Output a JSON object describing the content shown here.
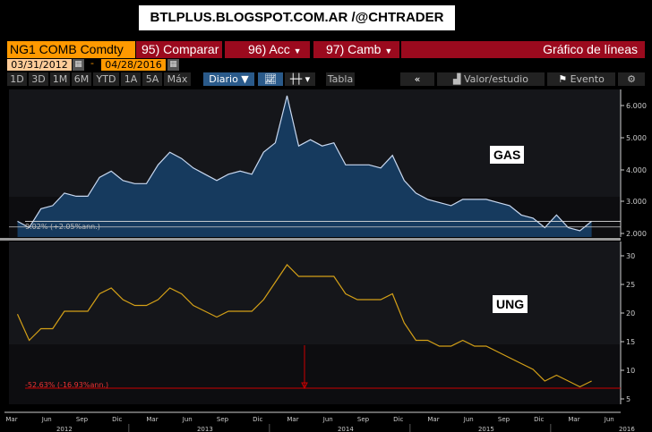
{
  "banner": "BTLPLUS.BLOGSPOT.COM.AR /@CHTRADER",
  "header": {
    "ticker": "NG1 COMB Comdty",
    "compare": "95) Comparar",
    "acc": "96) Acc",
    "camb": "97) Camb",
    "chart_type": "Gráfico de líneas",
    "start_date": "03/31/2012",
    "sep": "-",
    "end_date": "04/28/2016"
  },
  "toolbar": {
    "periods": [
      "1D",
      "3D",
      "1M",
      "6M",
      "YTD",
      "1A",
      "5A",
      "Máx"
    ],
    "freq": "Diario ▼",
    "table": "Tabla",
    "back": "«",
    "study": "Valor/estudio",
    "event": "Evento",
    "gear": "⚙"
  },
  "chart_data": [
    {
      "type": "area",
      "label": "GAS",
      "color": "#c8d8f0",
      "yticks": [
        "6.000",
        "5.000",
        "4.000",
        "3.000",
        "2.000"
      ],
      "ylim": [
        1.6,
        6.3
      ],
      "annotation": "9.02% (+2.05%ann.)",
      "x": [
        "2012-03",
        "2012-04",
        "2012-05",
        "2012-06",
        "2012-07",
        "2012-08",
        "2012-09",
        "2012-10",
        "2012-11",
        "2012-12",
        "2013-01",
        "2013-02",
        "2013-03",
        "2013-04",
        "2013-05",
        "2013-06",
        "2013-07",
        "2013-08",
        "2013-09",
        "2013-10",
        "2013-11",
        "2013-12",
        "2014-01",
        "2014-02",
        "2014-03",
        "2014-04",
        "2014-05",
        "2014-06",
        "2014-07",
        "2014-08",
        "2014-09",
        "2014-10",
        "2014-11",
        "2014-12",
        "2015-01",
        "2015-02",
        "2015-03",
        "2015-04",
        "2015-05",
        "2015-06",
        "2015-07",
        "2015-08",
        "2015-09",
        "2015-10",
        "2015-11",
        "2015-12",
        "2016-01",
        "2016-02",
        "2016-03",
        "2016-04"
      ],
      "values": [
        2.1,
        1.9,
        2.5,
        2.6,
        3.0,
        2.9,
        2.9,
        3.5,
        3.7,
        3.4,
        3.3,
        3.3,
        3.9,
        4.3,
        4.1,
        3.8,
        3.6,
        3.4,
        3.6,
        3.7,
        3.6,
        4.3,
        4.6,
        6.1,
        4.5,
        4.7,
        4.5,
        4.6,
        3.9,
        3.9,
        3.9,
        3.8,
        4.2,
        3.4,
        3.0,
        2.8,
        2.7,
        2.6,
        2.8,
        2.8,
        2.8,
        2.7,
        2.6,
        2.3,
        2.2,
        1.9,
        2.3,
        1.9,
        1.8,
        2.1
      ]
    },
    {
      "type": "line",
      "label": "UNG",
      "color": "#d4a017",
      "yticks": [
        "30",
        "25",
        "20",
        "15",
        "10",
        "5"
      ],
      "ylim": [
        3,
        31
      ],
      "annotation": "-52.63% (-16.93%ann.)",
      "values": [
        18.5,
        14,
        16,
        16,
        19,
        19,
        19,
        22,
        23,
        21,
        20,
        20,
        21,
        23,
        22,
        20,
        19,
        18,
        19,
        19,
        19,
        21,
        24,
        27,
        25,
        25,
        25,
        25,
        22,
        21,
        21,
        21,
        22,
        17,
        14,
        14,
        13,
        13,
        14,
        13,
        13,
        12,
        11,
        10,
        9,
        7,
        8,
        7,
        6,
        7
      ]
    }
  ],
  "xaxis": {
    "months": [
      "Mar",
      "Jun",
      "Sep",
      "Dic",
      "Mar",
      "Jun",
      "Sep",
      "Dic",
      "Mar",
      "Jun",
      "Sep",
      "Dic",
      "Mar",
      "Jun",
      "Sep",
      "Dic",
      "Mar",
      "Jun"
    ],
    "years": [
      "2012",
      "2013",
      "2014",
      "2015",
      "2016"
    ]
  }
}
